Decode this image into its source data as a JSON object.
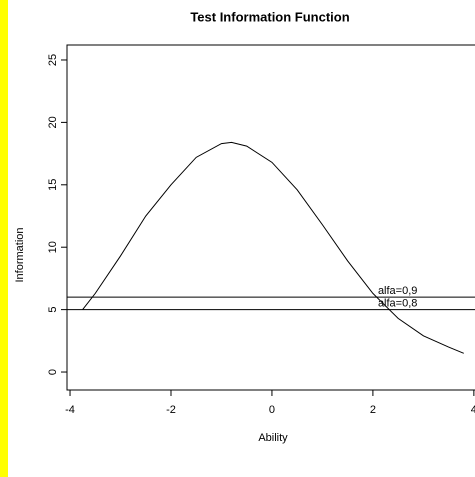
{
  "chart_data": {
    "type": "line",
    "title": "Test Information Function",
    "x_label": "Ability",
    "y_label": "Information",
    "x": [
      -3.75,
      -3.5,
      -3,
      -2.5,
      -2,
      -1.5,
      -1,
      -0.8,
      -0.5,
      0,
      0.5,
      1,
      1.5,
      2,
      2.5,
      3,
      3.5,
      3.8
    ],
    "series": [
      {
        "name": "Information",
        "color": "#000000",
        "values": [
          5.0,
          6.3,
          9.3,
          12.5,
          15.0,
          17.2,
          18.3,
          18.4,
          18.1,
          16.8,
          14.6,
          11.8,
          8.9,
          6.3,
          4.3,
          2.9,
          2.0,
          1.5
        ]
      }
    ],
    "hlines": [
      {
        "label": "alfa=0,9",
        "value": 6
      },
      {
        "label": "alfa=0,8",
        "value": 5
      }
    ],
    "annotation_x": 2.1,
    "xlim": [
      -4.06,
      4.3
    ],
    "xticks": [
      -4,
      -2,
      0,
      2,
      4
    ],
    "ylim": [
      -1.44,
      26.2
    ],
    "yticks": [
      0,
      5,
      10,
      15,
      20,
      25
    ]
  }
}
